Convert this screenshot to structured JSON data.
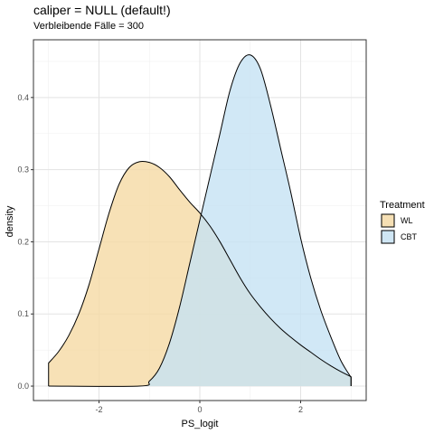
{
  "chart_data": {
    "type": "area",
    "title": "caliper = NULL (default!)",
    "subtitle": "Verbleibende Fälle = 300",
    "xlabel": "PS_logit",
    "ylabel": "density",
    "xlim": [
      -3.3,
      3.3
    ],
    "ylim": [
      -0.02,
      0.48
    ],
    "x_ticks": [
      -2,
      0,
      2
    ],
    "x_tick_labels": [
      "-2",
      "0",
      "2"
    ],
    "y_ticks": [
      0.0,
      0.1,
      0.2,
      0.3,
      0.4
    ],
    "y_tick_labels": [
      "0.0",
      "0.1",
      "0.2",
      "0.3",
      "0.4"
    ],
    "grid": true,
    "legend": {
      "title": "Treatment",
      "position": "right"
    },
    "series": [
      {
        "name": "WL",
        "color": "#f5d9a4",
        "x": [
          -3.0,
          -2.8,
          -2.6,
          -2.4,
          -2.2,
          -2.0,
          -1.8,
          -1.6,
          -1.4,
          -1.2,
          -1.0,
          -0.8,
          -0.6,
          -0.4,
          -0.2,
          0.0,
          0.2,
          0.4,
          0.6,
          0.8,
          1.0,
          1.2,
          1.4,
          1.6,
          1.8,
          2.0,
          2.2,
          2.4,
          2.6,
          2.8,
          3.0
        ],
        "values": [
          0.032,
          0.048,
          0.07,
          0.1,
          0.14,
          0.19,
          0.24,
          0.28,
          0.303,
          0.311,
          0.31,
          0.303,
          0.29,
          0.272,
          0.255,
          0.24,
          0.222,
          0.2,
          0.175,
          0.15,
          0.128,
          0.11,
          0.094,
          0.08,
          0.068,
          0.057,
          0.047,
          0.037,
          0.028,
          0.02,
          0.013
        ]
      },
      {
        "name": "CBT",
        "color": "#c6e2f4",
        "x": [
          -3.0,
          -1.2,
          -1.0,
          -0.8,
          -0.6,
          -0.4,
          -0.2,
          0.0,
          0.2,
          0.4,
          0.6,
          0.8,
          1.0,
          1.2,
          1.4,
          1.6,
          1.8,
          2.0,
          2.2,
          2.4,
          2.6,
          2.8,
          3.0
        ],
        "values": [
          0.0,
          0.0,
          0.007,
          0.025,
          0.06,
          0.11,
          0.17,
          0.23,
          0.29,
          0.35,
          0.41,
          0.448,
          0.459,
          0.44,
          0.39,
          0.33,
          0.27,
          0.205,
          0.15,
          0.105,
          0.068,
          0.035,
          0.012
        ]
      }
    ]
  }
}
